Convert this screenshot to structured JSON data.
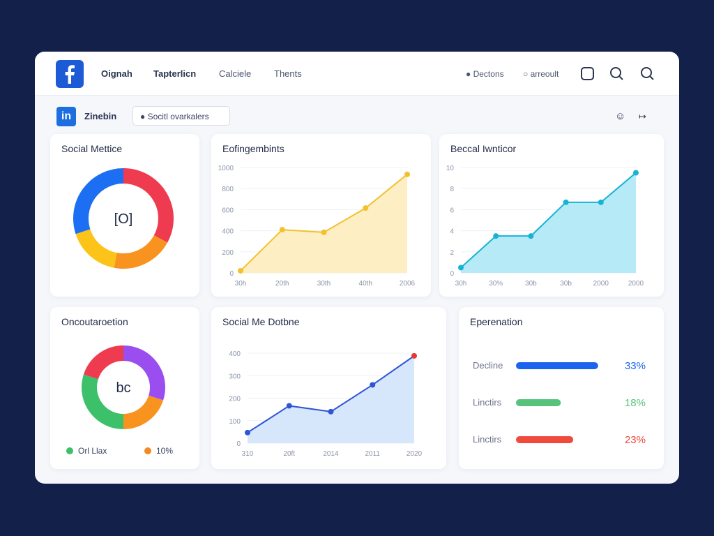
{
  "nav": {
    "links": [
      "Oignah",
      "Tapterlicn",
      "Calciele",
      "Thents"
    ],
    "actions": [
      "Dectons",
      "arreoult"
    ]
  },
  "toolbar": {
    "badge": "in",
    "name": "Zinebin",
    "chip": "Socitl ovarkalers"
  },
  "chart_data": [
    {
      "type": "pie",
      "title": "Social Mettice",
      "center_label": "[O]",
      "values": [
        33,
        20,
        17,
        30
      ],
      "colors": [
        "#ef3b4f",
        "#f7931e",
        "#fcc419",
        "#1c6ef2"
      ]
    },
    {
      "type": "area",
      "title": "Eofingembints",
      "categories": [
        "30h",
        "20th",
        "30th",
        "40th",
        "2006"
      ],
      "values": [
        20,
        410,
        385,
        615,
        935
      ],
      "color": "#f2c12e",
      "fill": "#fdeec4",
      "ylim": [
        0,
        1000
      ],
      "yticks": [
        0,
        200,
        400,
        600,
        800,
        1000
      ],
      "grid": true
    },
    {
      "type": "area",
      "title": "Beccal Iwnticor",
      "categories": [
        "30h",
        "30%",
        "30b",
        "30b",
        "2000",
        "2000"
      ],
      "values": [
        0.5,
        3.5,
        3.5,
        6.7,
        6.7,
        9.5
      ],
      "color": "#16b3d4",
      "fill": "#b5eaf6",
      "ylim": [
        0,
        10
      ],
      "yticks": [
        0,
        2,
        4,
        6,
        8,
        10
      ],
      "grid": true
    },
    {
      "type": "pie",
      "title": "Oncoutaroetion",
      "center_label": "bc",
      "values": [
        30,
        20,
        30,
        20
      ],
      "colors": [
        "#9b4ef0",
        "#f7931e",
        "#3cc06a",
        "#ef3b4f"
      ],
      "legend": [
        {
          "label": "Orl Llax",
          "color": "#3cc06a"
        },
        {
          "label": "10%",
          "color": "#f08a24"
        }
      ]
    },
    {
      "type": "area",
      "title": "Social Me Dotbne",
      "categories": [
        "310",
        "20ft",
        "2014",
        "2011",
        "2020"
      ],
      "values": [
        47,
        166,
        140,
        259,
        388
      ],
      "color": "#2f54d6",
      "fill": "#d6e6fb",
      "highlight_color": "#e53935",
      "ylim": [
        0,
        400
      ],
      "yticks": [
        0,
        100,
        200,
        300,
        400
      ],
      "grid": true
    },
    {
      "type": "progress",
      "title": "Eperenation",
      "categories": [
        "Decline",
        "Linctirs",
        "Linctirs"
      ],
      "values": [
        33,
        18,
        23
      ],
      "value_labels": [
        "33%",
        "18%",
        "23%"
      ],
      "colors": [
        "#1c63f0",
        "#57c27a",
        "#ef4a3c"
      ],
      "xlim": [
        0,
        42
      ]
    }
  ]
}
